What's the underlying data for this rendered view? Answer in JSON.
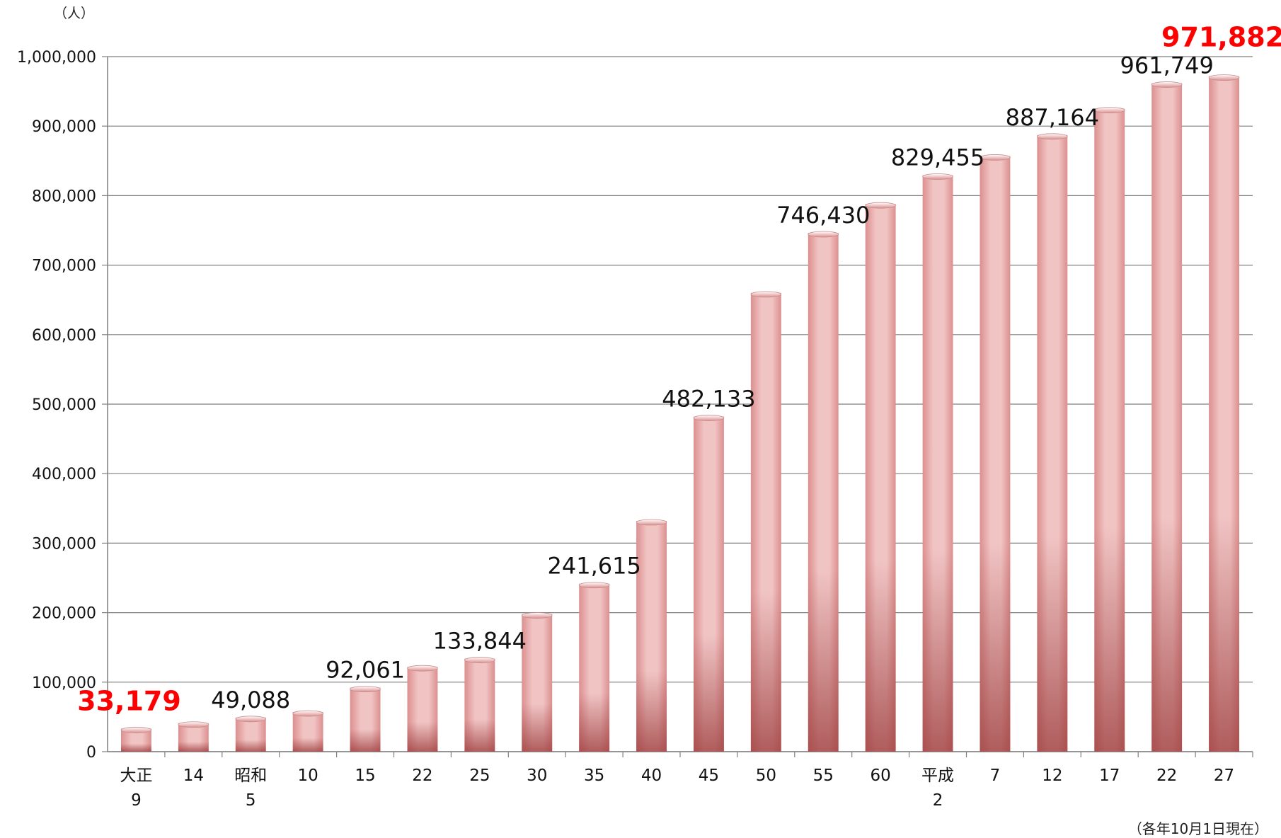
{
  "chart_data": {
    "type": "bar",
    "unit_label": "（人）",
    "footnote": "（各年10月1日現在）",
    "ylim": [
      0,
      1000000
    ],
    "yticks": [
      "0",
      "100,000",
      "200,000",
      "300,000",
      "400,000",
      "500,000",
      "600,000",
      "700,000",
      "800,000",
      "900,000",
      "1,000,000"
    ],
    "categories": [
      {
        "era": "大正",
        "year": "9"
      },
      {
        "era": "",
        "year": "14"
      },
      {
        "era": "昭和",
        "year": "5"
      },
      {
        "era": "",
        "year": "10"
      },
      {
        "era": "",
        "year": "15"
      },
      {
        "era": "",
        "year": "22"
      },
      {
        "era": "",
        "year": "25"
      },
      {
        "era": "",
        "year": "30"
      },
      {
        "era": "",
        "year": "35"
      },
      {
        "era": "",
        "year": "40"
      },
      {
        "era": "",
        "year": "45"
      },
      {
        "era": "",
        "year": "50"
      },
      {
        "era": "",
        "year": "55"
      },
      {
        "era": "",
        "year": "60"
      },
      {
        "era": "平成",
        "year": "2"
      },
      {
        "era": "",
        "year": "7"
      },
      {
        "era": "",
        "year": "12"
      },
      {
        "era": "",
        "year": "17"
      },
      {
        "era": "",
        "year": "22"
      },
      {
        "era": "",
        "year": "27"
      }
    ],
    "values": [
      33179,
      41000,
      49088,
      57000,
      92061,
      122000,
      133844,
      198000,
      241615,
      332000,
      482133,
      660000,
      746430,
      788000,
      829455,
      857000,
      887164,
      925000,
      961749,
      971882
    ],
    "data_labels": [
      {
        "index": 0,
        "text": "33,179",
        "highlight": true
      },
      {
        "index": 2,
        "text": "49,088",
        "highlight": false
      },
      {
        "index": 4,
        "text": "92,061",
        "highlight": false
      },
      {
        "index": 6,
        "text": "133,844",
        "highlight": false
      },
      {
        "index": 8,
        "text": "241,615",
        "highlight": false
      },
      {
        "index": 10,
        "text": "482,133",
        "highlight": false
      },
      {
        "index": 12,
        "text": "746,430",
        "highlight": false
      },
      {
        "index": 14,
        "text": "829,455",
        "highlight": false
      },
      {
        "index": 16,
        "text": "887,164",
        "highlight": false
      },
      {
        "index": 18,
        "text": "961,749",
        "highlight": false
      },
      {
        "index": 19,
        "text": "971,882",
        "highlight": true
      }
    ],
    "colors": {
      "bar_light": "#f1c4c4",
      "bar_mid": "#dc8f8f",
      "bar_dark": "#9a3a3a",
      "highlight": "#ff0000",
      "grid": "#7f7f7f"
    },
    "grid": true,
    "legend": "none"
  }
}
